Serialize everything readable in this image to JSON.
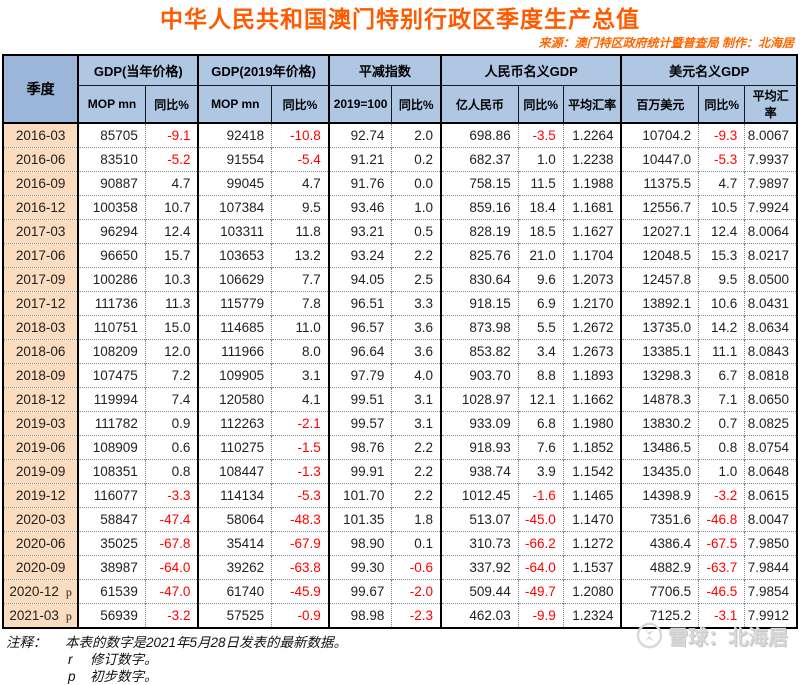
{
  "title": "中华人民共和国澳门特别行政区季度生产总值",
  "source_line": "来源：澳门特区政府统计暨普查局  制作：北海居",
  "colors": {
    "title_orange": "#ff5a00",
    "header_blue": "#afc7e3",
    "corner_blue": "#9bb6d8",
    "quarter_peach": "#fbdcbe",
    "negative_red": "#ff0000"
  },
  "table": {
    "corner_header": "季度",
    "groups": [
      {
        "label": "GDP(当年价格)",
        "cols": [
          "MOP mn",
          "同比%"
        ]
      },
      {
        "label": "GDP(2019年价格)",
        "cols": [
          "MOP mn",
          "同比%"
        ]
      },
      {
        "label": "平减指数",
        "cols": [
          "2019=100",
          "同比%"
        ]
      },
      {
        "label": "人民币名义GDP",
        "cols": [
          "亿人民币",
          "同比%",
          "平均汇率"
        ]
      },
      {
        "label": "美元名义GDP",
        "cols": [
          "百万美元",
          "同比%",
          "平均汇率"
        ]
      }
    ],
    "rows": [
      {
        "quarter": "2016-03",
        "note": "",
        "values": [
          "85705",
          "-9.1",
          "92418",
          "-10.8",
          "92.74",
          "2.0",
          "698.86",
          "-3.5",
          "1.2264",
          "10704.2",
          "-9.3",
          "8.0067"
        ]
      },
      {
        "quarter": "2016-06",
        "note": "",
        "values": [
          "83510",
          "-5.2",
          "91554",
          "-5.4",
          "91.21",
          "0.2",
          "682.37",
          "1.0",
          "1.2238",
          "10447.0",
          "-5.3",
          "7.9937"
        ]
      },
      {
        "quarter": "2016-09",
        "note": "",
        "values": [
          "90887",
          "4.7",
          "99045",
          "4.7",
          "91.76",
          "0.0",
          "758.15",
          "11.5",
          "1.1988",
          "11375.5",
          "4.7",
          "7.9897"
        ]
      },
      {
        "quarter": "2016-12",
        "note": "",
        "values": [
          "100358",
          "10.7",
          "107384",
          "9.5",
          "93.46",
          "1.0",
          "859.16",
          "18.4",
          "1.1681",
          "12556.7",
          "10.5",
          "7.9924"
        ]
      },
      {
        "quarter": "2017-03",
        "note": "",
        "values": [
          "96294",
          "12.4",
          "103311",
          "11.8",
          "93.21",
          "0.5",
          "828.19",
          "18.5",
          "1.1627",
          "12027.1",
          "12.4",
          "8.0064"
        ]
      },
      {
        "quarter": "2017-06",
        "note": "",
        "values": [
          "96650",
          "15.7",
          "103653",
          "13.2",
          "93.24",
          "2.2",
          "825.76",
          "21.0",
          "1.1704",
          "12048.5",
          "15.3",
          "8.0217"
        ]
      },
      {
        "quarter": "2017-09",
        "note": "",
        "values": [
          "100286",
          "10.3",
          "106629",
          "7.7",
          "94.05",
          "2.5",
          "830.64",
          "9.6",
          "1.2073",
          "12457.8",
          "9.5",
          "8.0500"
        ]
      },
      {
        "quarter": "2017-12",
        "note": "",
        "values": [
          "111736",
          "11.3",
          "115779",
          "7.8",
          "96.51",
          "3.3",
          "918.15",
          "6.9",
          "1.2170",
          "13892.1",
          "10.6",
          "8.0431"
        ]
      },
      {
        "quarter": "2018-03",
        "note": "",
        "values": [
          "110751",
          "15.0",
          "114685",
          "11.0",
          "96.57",
          "3.6",
          "873.98",
          "5.5",
          "1.2672",
          "13735.0",
          "14.2",
          "8.0634"
        ]
      },
      {
        "quarter": "2018-06",
        "note": "",
        "values": [
          "108209",
          "12.0",
          "111966",
          "8.0",
          "96.64",
          "3.6",
          "853.82",
          "3.4",
          "1.2673",
          "13385.1",
          "11.1",
          "8.0843"
        ]
      },
      {
        "quarter": "2018-09",
        "note": "",
        "values": [
          "107475",
          "7.2",
          "109905",
          "3.1",
          "97.79",
          "4.0",
          "903.70",
          "8.8",
          "1.1893",
          "13298.3",
          "6.7",
          "8.0818"
        ]
      },
      {
        "quarter": "2018-12",
        "note": "",
        "values": [
          "119994",
          "7.4",
          "120580",
          "4.1",
          "99.51",
          "3.1",
          "1028.97",
          "12.1",
          "1.1662",
          "14878.3",
          "7.1",
          "8.0650"
        ]
      },
      {
        "quarter": "2019-03",
        "note": "",
        "values": [
          "111782",
          "0.9",
          "112263",
          "-2.1",
          "99.57",
          "3.1",
          "933.09",
          "6.8",
          "1.1980",
          "13830.2",
          "0.7",
          "8.0825"
        ]
      },
      {
        "quarter": "2019-06",
        "note": "",
        "values": [
          "108909",
          "0.6",
          "110275",
          "-1.5",
          "98.76",
          "2.2",
          "918.93",
          "7.6",
          "1.1852",
          "13486.5",
          "0.8",
          "8.0754"
        ]
      },
      {
        "quarter": "2019-09",
        "note": "",
        "values": [
          "108351",
          "0.8",
          "108447",
          "-1.3",
          "99.91",
          "2.2",
          "938.74",
          "3.9",
          "1.1542",
          "13435.0",
          "1.0",
          "8.0648"
        ]
      },
      {
        "quarter": "2019-12",
        "note": "",
        "values": [
          "116077",
          "-3.3",
          "114134",
          "-5.3",
          "101.70",
          "2.2",
          "1012.45",
          "-1.6",
          "1.1465",
          "14398.9",
          "-3.2",
          "8.0615"
        ]
      },
      {
        "quarter": "2020-03",
        "note": "",
        "values": [
          "58847",
          "-47.4",
          "58064",
          "-48.3",
          "101.35",
          "1.8",
          "513.07",
          "-45.0",
          "1.1470",
          "7351.6",
          "-46.8",
          "8.0047"
        ]
      },
      {
        "quarter": "2020-06",
        "note": "",
        "values": [
          "35025",
          "-67.8",
          "35414",
          "-67.9",
          "98.90",
          "0.1",
          "310.73",
          "-66.2",
          "1.1272",
          "4386.4",
          "-67.5",
          "7.9850"
        ]
      },
      {
        "quarter": "2020-09",
        "note": "",
        "values": [
          "38987",
          "-64.0",
          "39262",
          "-63.8",
          "99.30",
          "-0.6",
          "337.92",
          "-64.0",
          "1.1537",
          "4882.9",
          "-63.7",
          "7.9844"
        ]
      },
      {
        "quarter": "2020-12",
        "note": "p",
        "values": [
          "61539",
          "-47.0",
          "61740",
          "-45.9",
          "99.67",
          "-2.0",
          "509.44",
          "-49.7",
          "1.2080",
          "7706.5",
          "-46.5",
          "7.9854"
        ]
      },
      {
        "quarter": "2021-03",
        "note": "p",
        "values": [
          "56939",
          "-3.2",
          "57525",
          "-0.9",
          "98.98",
          "-2.3",
          "462.03",
          "-9.9",
          "1.2324",
          "7125.2",
          "-3.1",
          "7.9912"
        ]
      }
    ]
  },
  "notes": {
    "label": "注释：",
    "line1": "本表的数字是2021年5月28日发表的最新数据。",
    "line2_mark": "r",
    "line2_text": "修订数字。",
    "line3_mark": "p",
    "line3_text": "初步数字。"
  },
  "watermark": {
    "logo": "xueqiu-logo",
    "text": "雪球：北海居"
  }
}
